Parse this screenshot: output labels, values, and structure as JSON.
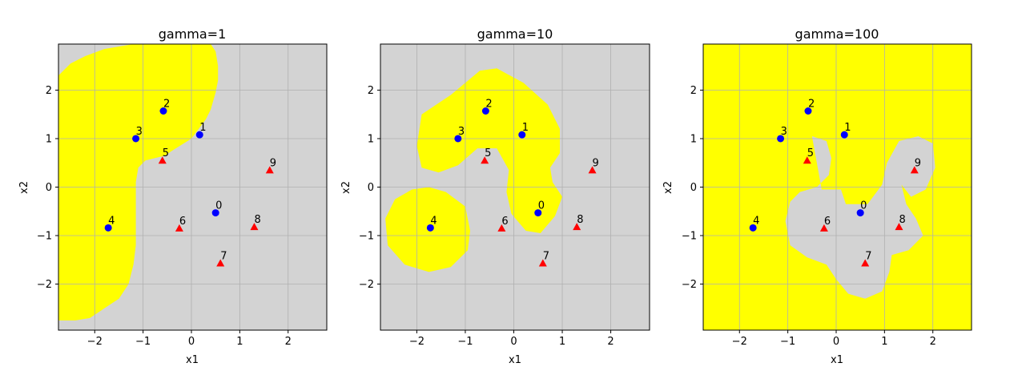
{
  "colors": {
    "region_positive": "#ffff00",
    "region_negative": "#d3d3d3",
    "class_circle": "#0000ff",
    "class_triangle": "#ff0000",
    "grid": "#b0b0b0"
  },
  "chart_data": [
    {
      "type": "scatter",
      "title": "gamma=1",
      "xlabel": "x1",
      "ylabel": "x2",
      "xlim": [
        -2.75,
        2.8
      ],
      "ylim": [
        -2.95,
        2.95
      ],
      "xticks": [
        -2,
        -1,
        0,
        1,
        2
      ],
      "yticks": [
        -2,
        -1,
        0,
        1,
        2
      ],
      "xtick_labels": [
        "−2",
        "−1",
        "0",
        "1",
        "2"
      ],
      "ytick_labels": [
        "−2",
        "−1",
        "0",
        "1",
        "2"
      ],
      "grid": true,
      "background": "region_negative",
      "region_color": "region_positive",
      "region": [
        [
          -0.4,
          2.95
        ],
        [
          0.4,
          2.95
        ],
        [
          0.5,
          2.8
        ],
        [
          0.55,
          2.5
        ],
        [
          0.55,
          2.2
        ],
        [
          0.5,
          1.95
        ],
        [
          0.4,
          1.6
        ],
        [
          0.3,
          1.4
        ],
        [
          0.15,
          1.2
        ],
        [
          0,
          1.0
        ],
        [
          -0.4,
          0.75
        ],
        [
          -0.55,
          0.65
        ],
        [
          -0.75,
          0.6
        ],
        [
          -0.95,
          0.55
        ],
        [
          -1.1,
          0.4
        ],
        [
          -1.15,
          0.1
        ],
        [
          -1.15,
          -0.3
        ],
        [
          -1.15,
          -0.8
        ],
        [
          -1.15,
          -1.2
        ],
        [
          -1.2,
          -1.6
        ],
        [
          -1.3,
          -2.0
        ],
        [
          -1.5,
          -2.3
        ],
        [
          -1.8,
          -2.5
        ],
        [
          -2.1,
          -2.7
        ],
        [
          -2.4,
          -2.75
        ],
        [
          -2.75,
          -2.75
        ],
        [
          -2.75,
          2.3
        ],
        [
          -2.5,
          2.55
        ],
        [
          -2.2,
          2.7
        ],
        [
          -1.8,
          2.85
        ],
        [
          -1.2,
          2.95
        ]
      ],
      "points": [
        {
          "label": "0",
          "x": 0.5,
          "y": -0.53,
          "class": "circle"
        },
        {
          "label": "1",
          "x": 0.17,
          "y": 1.08,
          "class": "circle"
        },
        {
          "label": "2",
          "x": -0.58,
          "y": 1.57,
          "class": "circle"
        },
        {
          "label": "3",
          "x": -1.15,
          "y": 1.0,
          "class": "circle"
        },
        {
          "label": "4",
          "x": -1.72,
          "y": -0.84,
          "class": "circle"
        },
        {
          "label": "5",
          "x": -0.6,
          "y": 0.55,
          "class": "triangle"
        },
        {
          "label": "6",
          "x": -0.25,
          "y": -0.85,
          "class": "triangle"
        },
        {
          "label": "7",
          "x": 0.6,
          "y": -1.57,
          "class": "triangle"
        },
        {
          "label": "8",
          "x": 1.3,
          "y": -0.82,
          "class": "triangle"
        },
        {
          "label": "9",
          "x": 1.62,
          "y": 0.35,
          "class": "triangle"
        }
      ]
    },
    {
      "type": "scatter",
      "title": "gamma=10",
      "xlabel": "x1",
      "ylabel": "x2",
      "xlim": [
        -2.75,
        2.8
      ],
      "ylim": [
        -2.95,
        2.95
      ],
      "xticks": [
        -2,
        -1,
        0,
        1,
        2
      ],
      "yticks": [
        -2,
        -1,
        0,
        1,
        2
      ],
      "xtick_labels": [
        "−2",
        "−1",
        "0",
        "1",
        "2"
      ],
      "ytick_labels": [
        "−2",
        "−1",
        "0",
        "1",
        "2"
      ],
      "grid": true,
      "background": "region_negative",
      "region_color": "region_positive",
      "region": [
        [
          -1.9,
          1.5
        ],
        [
          -1.3,
          1.9
        ],
        [
          -0.7,
          2.4
        ],
        [
          -0.35,
          2.45
        ],
        [
          0.2,
          2.15
        ],
        [
          0.7,
          1.7
        ],
        [
          0.95,
          1.2
        ],
        [
          0.95,
          0.7
        ],
        [
          0.75,
          0.4
        ],
        [
          0.8,
          0.1
        ],
        [
          1.0,
          -0.2
        ],
        [
          0.85,
          -0.6
        ],
        [
          0.55,
          -0.95
        ],
        [
          0.25,
          -0.9
        ],
        [
          -0.05,
          -0.55
        ],
        [
          -0.15,
          -0.1
        ],
        [
          -0.1,
          0.35
        ],
        [
          -0.35,
          0.8
        ],
        [
          -0.75,
          0.8
        ],
        [
          -1.15,
          0.45
        ],
        [
          -1.55,
          0.3
        ],
        [
          -1.9,
          0.4
        ],
        [
          -2.0,
          0.85
        ]
      ],
      "region2": [
        [
          -1.75,
          0.0
        ],
        [
          -1.4,
          -0.1
        ],
        [
          -1.0,
          -0.4
        ],
        [
          -0.9,
          -0.9
        ],
        [
          -0.95,
          -1.3
        ],
        [
          -1.3,
          -1.65
        ],
        [
          -1.75,
          -1.75
        ],
        [
          -2.25,
          -1.6
        ],
        [
          -2.6,
          -1.2
        ],
        [
          -2.65,
          -0.65
        ],
        [
          -2.45,
          -0.25
        ],
        [
          -2.1,
          -0.05
        ]
      ],
      "points": [
        {
          "label": "0",
          "x": 0.5,
          "y": -0.53,
          "class": "circle"
        },
        {
          "label": "1",
          "x": 0.17,
          "y": 1.08,
          "class": "circle"
        },
        {
          "label": "2",
          "x": -0.58,
          "y": 1.57,
          "class": "circle"
        },
        {
          "label": "3",
          "x": -1.15,
          "y": 1.0,
          "class": "circle"
        },
        {
          "label": "4",
          "x": -1.72,
          "y": -0.84,
          "class": "circle"
        },
        {
          "label": "5",
          "x": -0.6,
          "y": 0.55,
          "class": "triangle"
        },
        {
          "label": "6",
          "x": -0.25,
          "y": -0.85,
          "class": "triangle"
        },
        {
          "label": "7",
          "x": 0.6,
          "y": -1.57,
          "class": "triangle"
        },
        {
          "label": "8",
          "x": 1.3,
          "y": -0.82,
          "class": "triangle"
        },
        {
          "label": "9",
          "x": 1.62,
          "y": 0.35,
          "class": "triangle"
        }
      ]
    },
    {
      "type": "scatter",
      "title": "gamma=100",
      "xlabel": "x1",
      "ylabel": "x2",
      "xlim": [
        -2.75,
        2.8
      ],
      "ylim": [
        -2.95,
        2.95
      ],
      "xticks": [
        -2,
        -1,
        0,
        1,
        2
      ],
      "yticks": [
        -2,
        -1,
        0,
        1,
        2
      ],
      "xtick_labels": [
        "−2",
        "−1",
        "0",
        "1",
        "2"
      ],
      "ytick_labels": [
        "−2",
        "−1",
        "0",
        "1",
        "2"
      ],
      "grid": true,
      "background": "region_positive",
      "region_color": "region_negative",
      "region": [
        [
          -0.5,
          1.05
        ],
        [
          -0.2,
          0.95
        ],
        [
          -0.1,
          0.6
        ],
        [
          -0.15,
          0.25
        ],
        [
          -0.4,
          0.0
        ],
        [
          -0.75,
          -0.1
        ],
        [
          -0.95,
          -0.3
        ],
        [
          -1.05,
          -0.7
        ],
        [
          -0.95,
          -1.2
        ],
        [
          -0.6,
          -1.45
        ],
        [
          -0.2,
          -1.6
        ],
        [
          0.0,
          -1.9
        ],
        [
          0.25,
          -2.2
        ],
        [
          0.6,
          -2.3
        ],
        [
          0.95,
          -2.15
        ],
        [
          1.1,
          -1.75
        ],
        [
          1.15,
          -1.4
        ],
        [
          1.5,
          -1.3
        ],
        [
          1.8,
          -1.0
        ],
        [
          1.65,
          -0.65
        ],
        [
          1.45,
          -0.35
        ],
        [
          1.35,
          0.05
        ],
        [
          1.55,
          -0.2
        ],
        [
          1.85,
          -0.05
        ],
        [
          2.05,
          0.4
        ],
        [
          2.0,
          0.9
        ],
        [
          1.7,
          1.05
        ],
        [
          1.3,
          0.95
        ],
        [
          1.05,
          0.5
        ],
        [
          0.95,
          0.05
        ],
        [
          0.65,
          -0.35
        ],
        [
          0.2,
          -0.35
        ],
        [
          0.1,
          -0.05
        ],
        [
          -0.3,
          -0.05
        ]
      ],
      "points": [
        {
          "label": "0",
          "x": 0.5,
          "y": -0.53,
          "class": "circle"
        },
        {
          "label": "1",
          "x": 0.17,
          "y": 1.08,
          "class": "circle"
        },
        {
          "label": "2",
          "x": -0.58,
          "y": 1.57,
          "class": "circle"
        },
        {
          "label": "3",
          "x": -1.15,
          "y": 1.0,
          "class": "circle"
        },
        {
          "label": "4",
          "x": -1.72,
          "y": -0.84,
          "class": "circle"
        },
        {
          "label": "5",
          "x": -0.6,
          "y": 0.55,
          "class": "triangle"
        },
        {
          "label": "6",
          "x": -0.25,
          "y": -0.85,
          "class": "triangle"
        },
        {
          "label": "7",
          "x": 0.6,
          "y": -1.57,
          "class": "triangle"
        },
        {
          "label": "8",
          "x": 1.3,
          "y": -0.82,
          "class": "triangle"
        },
        {
          "label": "9",
          "x": 1.62,
          "y": 0.35,
          "class": "triangle"
        }
      ]
    }
  ]
}
